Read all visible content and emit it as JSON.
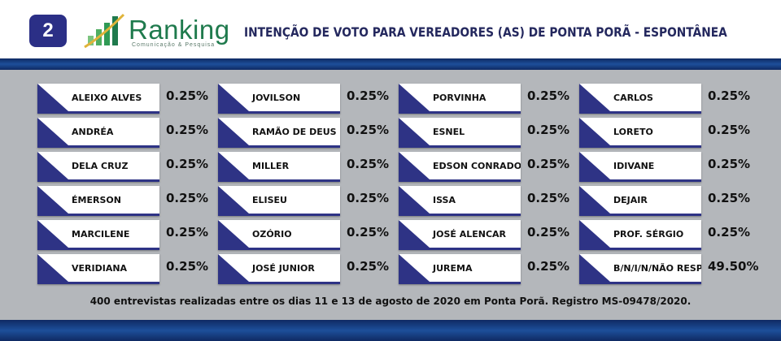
{
  "header": {
    "badge": "2",
    "brand": {
      "name": "Ranking",
      "tagline": "Comunicação & Pesquisa"
    },
    "title": "INTENÇÃO DE VOTO PARA VEREADORES (AS) DE PONTA PORÃ - ESPONTÂNEA"
  },
  "colors": {
    "accent": "#2e3385",
    "band": "#1d4f9a",
    "brand_green": "#1f7a4d"
  },
  "candidates": [
    {
      "name": "ALEIXO ALVES",
      "value": "0.25%"
    },
    {
      "name": "ANDRÉA",
      "value": "0.25%"
    },
    {
      "name": "DELA CRUZ",
      "value": "0.25%"
    },
    {
      "name": "ÉMERSON",
      "value": "0.25%"
    },
    {
      "name": "MARCILENE",
      "value": "0.25%"
    },
    {
      "name": "VERIDIANA",
      "value": "0.25%"
    },
    {
      "name": "JOVILSON",
      "value": "0.25%"
    },
    {
      "name": "RAMÃO DE DEUS",
      "value": "0.25%"
    },
    {
      "name": "MILLER",
      "value": "0.25%"
    },
    {
      "name": "ELISEU",
      "value": "0.25%"
    },
    {
      "name": "OZÓRIO",
      "value": "0.25%"
    },
    {
      "name": "JOSÉ JUNIOR",
      "value": "0.25%"
    },
    {
      "name": "PORVINHA",
      "value": "0.25%"
    },
    {
      "name": "ESNEL",
      "value": "0.25%"
    },
    {
      "name": "EDSON CONRADO",
      "value": "0.25%"
    },
    {
      "name": "ISSA",
      "value": "0.25%"
    },
    {
      "name": "JOSÉ ALENCAR",
      "value": "0.25%"
    },
    {
      "name": "JUREMA",
      "value": "0.25%"
    },
    {
      "name": "CARLOS",
      "value": "0.25%"
    },
    {
      "name": "LORETO",
      "value": "0.25%"
    },
    {
      "name": "IDIVANE",
      "value": "0.25%"
    },
    {
      "name": "DEJAIR",
      "value": "0.25%"
    },
    {
      "name": "PROF. SÉRGIO",
      "value": "0.25%"
    },
    {
      "name": "B/N/I/N/NÃO RESP.",
      "value": "49.50%"
    }
  ],
  "footnote": "400 entrevistas realizadas entre os dias 11 e 13 de agosto de 2020 em Ponta Porã. Registro MS-09478/2020."
}
